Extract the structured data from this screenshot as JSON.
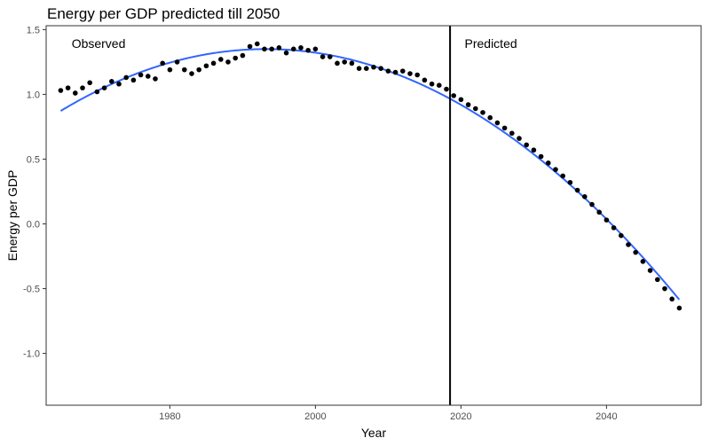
{
  "chart_data": {
    "type": "scatter",
    "title": "Energy per GDP predicted till 2050",
    "xlabel": "Year",
    "ylabel": "Energy per GDP",
    "xlim": [
      1963,
      2053
    ],
    "ylim": [
      -1.4,
      1.53
    ],
    "xticks": [
      1980,
      2000,
      2020,
      2040
    ],
    "yticks": [
      -1.0,
      -0.5,
      0.0,
      0.5,
      1.0,
      1.5
    ],
    "xtick_labels": [
      "1980",
      "2000",
      "2020",
      "2040"
    ],
    "ytick_labels": [
      "-1.0",
      "-0.5",
      "0.0",
      "0.5",
      "1.0",
      "1.5"
    ],
    "grid": false,
    "vline_x": 2018.5,
    "annotations": [
      {
        "text": "Observed",
        "x": 1966.5,
        "y": 1.36
      },
      {
        "text": "Predicted",
        "x": 2020.5,
        "y": 1.36
      }
    ],
    "series": [
      {
        "point_color": "#000000",
        "x": [
          1965,
          1966,
          1967,
          1968,
          1969,
          1970,
          1971,
          1972,
          1973,
          1974,
          1975,
          1976,
          1977,
          1978,
          1979,
          1980,
          1981,
          1982,
          1983,
          1984,
          1985,
          1986,
          1987,
          1988,
          1989,
          1990,
          1991,
          1992,
          1993,
          1994,
          1995,
          1996,
          1997,
          1998,
          1999,
          2000,
          2001,
          2002,
          2003,
          2004,
          2005,
          2006,
          2007,
          2008,
          2009,
          2010,
          2011,
          2012,
          2013,
          2014,
          2015,
          2016,
          2017,
          2018
        ],
        "y": [
          1.03,
          1.05,
          1.01,
          1.05,
          1.09,
          1.02,
          1.05,
          1.1,
          1.08,
          1.13,
          1.11,
          1.15,
          1.14,
          1.12,
          1.24,
          1.19,
          1.25,
          1.19,
          1.16,
          1.19,
          1.22,
          1.24,
          1.27,
          1.25,
          1.28,
          1.3,
          1.37,
          1.39,
          1.35,
          1.35,
          1.36,
          1.32,
          1.35,
          1.36,
          1.34,
          1.35,
          1.29,
          1.29,
          1.24,
          1.25,
          1.24,
          1.2,
          1.2,
          1.21,
          1.2,
          1.18,
          1.17,
          1.18,
          1.16,
          1.15,
          1.11,
          1.08,
          1.07,
          1.04
        ]
      },
      {
        "point_color": "#000000",
        "x": [
          2019,
          2020,
          2021,
          2022,
          2023,
          2024,
          2025,
          2026,
          2027,
          2028,
          2029,
          2030,
          2031,
          2032,
          2033,
          2034,
          2035,
          2036,
          2037,
          2038,
          2039,
          2040,
          2041,
          2042,
          2043,
          2044,
          2045,
          2046,
          2047,
          2048,
          2049,
          2050
        ],
        "y": [
          0.99,
          0.96,
          0.92,
          0.89,
          0.86,
          0.82,
          0.78,
          0.74,
          0.7,
          0.66,
          0.61,
          0.57,
          0.52,
          0.47,
          0.42,
          0.37,
          0.32,
          0.26,
          0.21,
          0.15,
          0.09,
          0.03,
          -0.03,
          -0.09,
          -0.16,
          -0.22,
          -0.29,
          -0.36,
          -0.43,
          -0.5,
          -0.58,
          -0.65
        ]
      }
    ],
    "trend": {
      "color": "#3366FF",
      "fit": "quadratic",
      "x_range": [
        1965,
        2050
      ]
    }
  }
}
